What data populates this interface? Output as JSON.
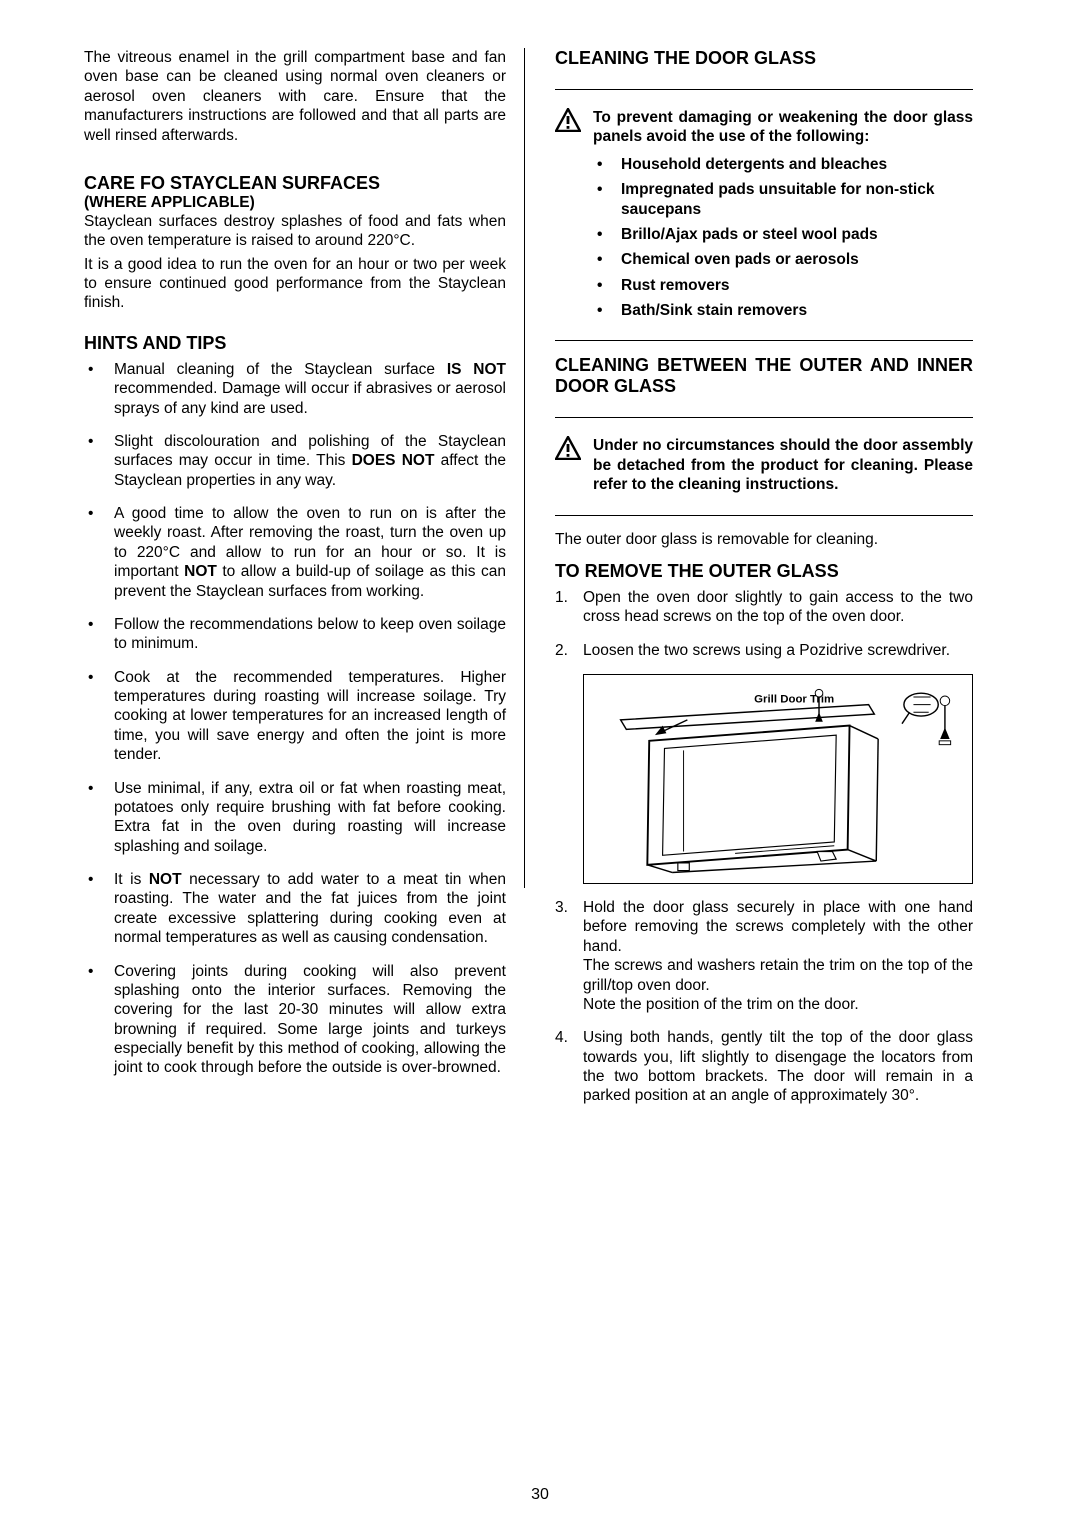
{
  "left": {
    "intro": "The vitreous enamel in the grill compartment base and fan oven base can be cleaned using normal oven cleaners or aerosol oven cleaners with care. Ensure that the manufacturers instructions are followed and that all parts are well rinsed afterwards.",
    "care_heading": "CARE FO STAYCLEAN SURFACES",
    "care_sub": "(WHERE APPLICABLE)",
    "care_p1": "Stayclean surfaces destroy splashes of food and fats when the oven temperature is raised to around 220°C.",
    "care_p2": "It is a good idea to run the oven for an hour or two per week to ensure continued good performance from the Stayclean finish.",
    "hints_heading": "HINTS AND TIPS",
    "hints": [
      {
        "pre": "Manual cleaning of the Stayclean surface ",
        "bold": "IS NOT",
        "post": " recommended.  Damage will occur if abrasives or aerosol sprays of any kind are used."
      },
      {
        "pre": "Slight discolouration and polishing of the Stayclean surfaces may occur in time. This ",
        "bold": "DOES NOT",
        "post": " affect the Stayclean properties in any way."
      },
      {
        "pre": "A good time to allow the oven to run on is after the weekly roast.  After removing the roast, turn the oven up to 220°C and allow to run for an hour or so.  It is important ",
        "bold": "NOT",
        "post": " to allow a build-up of soilage as this can prevent the Stayclean surfaces from working."
      },
      {
        "pre": "Follow the recommendations below to keep oven soilage to minimum.",
        "bold": "",
        "post": ""
      },
      {
        "pre": "Cook at the recommended temperatures.  Higher temperatures during roasting will increase soilage.  Try cooking at lower temperatures for an increased length of time, you will save energy and often the joint is more tender.",
        "bold": "",
        "post": ""
      },
      {
        "pre": "Use minimal, if any, extra oil or fat when roasting meat, potatoes only require brushing with fat before cooking.  Extra fat in the oven during roasting will increase splashing and soilage.",
        "bold": "",
        "post": ""
      },
      {
        "pre": "It is ",
        "bold": "NOT",
        "post": " necessary to add water to a meat tin when roasting.  The water and the fat juices from the joint create excessive splattering during cooking even at normal temperatures as well as causing condensation."
      },
      {
        "pre": "Covering joints during cooking will also prevent splashing onto the interior surfaces.  Removing the covering for the last 20-30 minutes will allow extra browning if required.  Some large joints and turkeys especially benefit by this method of cooking, allowing the joint to cook through before the outside is over-browned.",
        "bold": "",
        "post": ""
      }
    ]
  },
  "right": {
    "clean_glass_heading": "CLEANING THE DOOR GLASS",
    "warn1": "To prevent damaging or weakening the door glass panels avoid the use of the following:",
    "warn1_bullets": [
      "Household detergents and bleaches",
      "Impregnated pads unsuitable for non-stick saucepans",
      "Brillo/Ajax pads or steel wool pads",
      "Chemical oven pads or aerosols",
      "Rust removers",
      "Bath/Sink stain removers"
    ],
    "between_heading": "CLEANING BETWEEN THE OUTER AND INNER DOOR GLASS",
    "warn2": "Under no circumstances should the door assembly be detached from the product for cleaning.  Please refer to the cleaning instructions.",
    "outer_para": "The outer door glass is removable for cleaning.",
    "remove_heading": "TO REMOVE THE OUTER GLASS",
    "step1": "Open the oven door slightly to gain access to the two cross head screws on the top of the oven door.",
    "step2": "Loosen the two screws using a Pozidrive screwdriver.",
    "diagram_label": "Grill Door Trim",
    "step3a": "Hold the door glass securely in place with one hand before removing the screws completely with the other hand.",
    "step3b": "The screws and washers retain the trim on the top of the grill/top oven door.",
    "step3c": "Note the position of the trim on the door.",
    "step4": "Using both hands, gently tilt the top of the door glass towards you, lift slightly to disengage the locators from the two bottom brackets.  The door will remain in a parked position at an angle of approximately 30°."
  },
  "page_number": "30"
}
